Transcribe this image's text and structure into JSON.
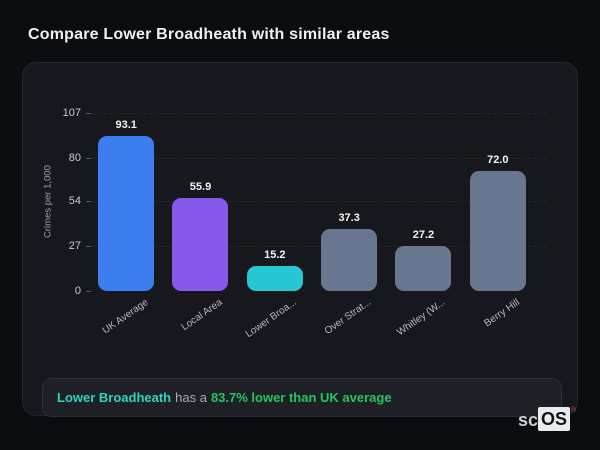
{
  "page": {
    "title": "Compare Lower Broadheath with similar areas"
  },
  "chart_data": {
    "type": "bar",
    "title": "Compare Lower Broadheath with similar areas",
    "xlabel": "",
    "ylabel": "Crimes per 1,000",
    "categories": [
      "UK Average",
      "Local Area",
      "Lower Broa...",
      "Over Strat...",
      "Whitley (W...",
      "Berry Hill"
    ],
    "values": [
      93.1,
      55.9,
      15.2,
      37.3,
      27.2,
      72.0
    ],
    "value_labels": [
      "93.1",
      "55.9",
      "15.2",
      "37.3",
      "27.2",
      "72.0"
    ],
    "bar_colors": [
      "#3d7df0",
      "#8659ea",
      "#27c7d4",
      "#68778f",
      "#68778f",
      "#68778f"
    ],
    "yticks": [
      0,
      27,
      54,
      80,
      107
    ],
    "ylim": [
      0,
      107
    ],
    "grid": "dashed-horizontal-gridlines",
    "legend": "none",
    "xtick_rotation": -35
  },
  "note": {
    "area_label": "Lower Broadheath",
    "connector": "has a",
    "stat": "83.7% lower than UK average",
    "area_color": "#2dd4bf",
    "stat_color": "#22c55e"
  },
  "logo": {
    "prefix": "sc",
    "suffix": "OS",
    "registered": "®"
  },
  "colors": {
    "page_background": "#0b0c10",
    "card_background": "#16181d",
    "note_background": "#1e2026",
    "title_text": "#eef0f3",
    "tick_text": "#c7cbd1",
    "axis_title_text": "#9aa0a8"
  }
}
